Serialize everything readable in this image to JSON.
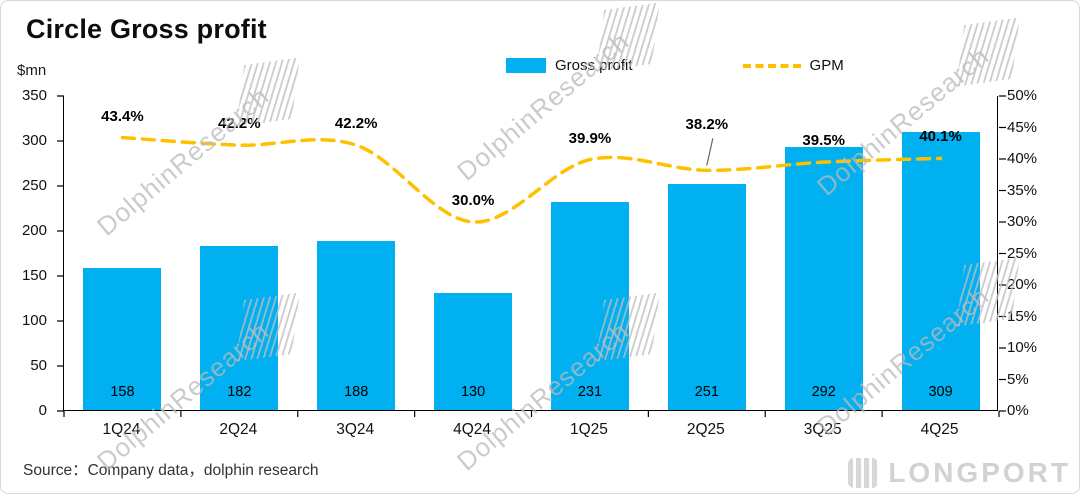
{
  "header": {
    "title": "Circle Gross profit",
    "unit_label": "$mn"
  },
  "legend": {
    "bar_label": "Gross profit",
    "line_label": "GPM"
  },
  "chart_data": {
    "type": "bar",
    "title": "Circle Gross profit",
    "categories": [
      "1Q24",
      "2Q24",
      "3Q24",
      "4Q24",
      "1Q25",
      "2Q25",
      "3Q25",
      "4Q25"
    ],
    "series": [
      {
        "name": "Gross profit",
        "type": "bar",
        "axis": "left",
        "unit": "$mn",
        "color": "#00B0F0",
        "values": [
          158,
          182,
          188,
          130,
          231,
          251,
          292,
          309
        ]
      },
      {
        "name": "GPM",
        "type": "line",
        "axis": "right",
        "unit": "%",
        "color": "#FFC000",
        "style": "dashed",
        "values": [
          43.4,
          42.2,
          42.2,
          30.0,
          39.9,
          38.2,
          39.5,
          40.1
        ],
        "labels": [
          "43.4%",
          "42.2%",
          "42.2%",
          "30.0%",
          "39.9%",
          "38.2%",
          "39.5%",
          "40.1%"
        ]
      }
    ],
    "left_axis": {
      "min": 0,
      "max": 350,
      "step": 50,
      "tick_labels": [
        "0",
        "50",
        "100",
        "150",
        "200",
        "250",
        "300",
        "350"
      ]
    },
    "right_axis": {
      "min": 0,
      "max": 50,
      "step": 5,
      "tick_labels": [
        "0%",
        "5%",
        "10%",
        "15%",
        "20%",
        "25%",
        "30%",
        "35%",
        "40%",
        "45%",
        "50%"
      ]
    },
    "grid": false,
    "legend_position": "top"
  },
  "footer": {
    "source": "Source：Company data，dolphin research"
  },
  "watermark": {
    "text": "DolphinResearch",
    "brand": "LONGPORT"
  }
}
